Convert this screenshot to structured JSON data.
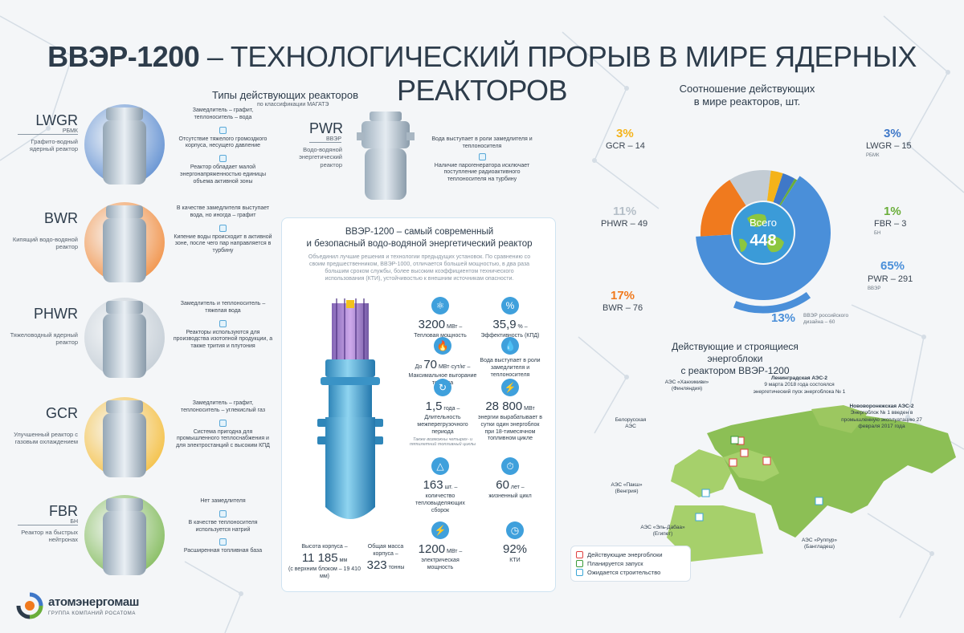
{
  "title": {
    "bold": "ВВЭР-1200",
    "rest": " – ТЕХНОЛОГИЧЕСКИЙ ПРОРЫВ В МИРЕ ЯДЕРНЫХ РЕАКТОРОВ"
  },
  "types": {
    "title": "Типы действующих реакторов",
    "subtitle": "по классификации МАГАТЭ"
  },
  "reactors": [
    {
      "code": "LWGR",
      "abbr": "РБМК",
      "desc": "Графито-водный ядерный реактор",
      "color": "#3f78c8",
      "facts": [
        "Замедлитель – графит, теплоноситель – вода",
        "Отсутствие тяжелого громоздкого корпуса, несущего давление",
        "Реактор обладает малой энергонапряженностью единицы объема активной зоны"
      ]
    },
    {
      "code": "BWR",
      "abbr": "",
      "desc": "Кипящий водо-водяной реактор",
      "color": "#f07a1e",
      "facts": [
        "В качестве замедлителя выступает вода, но иногда – графит",
        "Кипение воды происходит в активной зоне, после чего пар направляется в турбину"
      ]
    },
    {
      "code": "PHWR",
      "abbr": "",
      "desc": "Тяжеловодный ядерный реактор",
      "color": "#b8c3cd",
      "facts": [
        "Замедлитель и теплоноситель – тяжелая вода",
        "Реакторы используются для производства изотопной продукции, а также трития и плутония"
      ]
    },
    {
      "code": "GCR",
      "abbr": "",
      "desc": "Улучшенный реактор с газовым охлаждением",
      "color": "#f4b31a",
      "facts": [
        "Замедлитель – графит, теплоноситель – углекислый газ",
        "Система пригодна для промышленного теплоснабжения и для электростанций с высоким КПД"
      ]
    },
    {
      "code": "FBR",
      "abbr": "БН",
      "desc": "Реактор на быстрых нейтронах",
      "color": "#6aae3a",
      "facts": [
        "Нет замедлителя",
        "В качестве теплоносителя используется натрий",
        "Расширенная топливная база"
      ]
    }
  ],
  "pwr": {
    "code": "PWR",
    "abbr": "ВВЭР",
    "desc": "Водо-водяной энергетический реактор",
    "facts": [
      "Вода выступает в роли замедлителя и теплоносителя",
      "Наличие парогенератора исключает поступление радиоактивного теплоносителя на турбину"
    ]
  },
  "vver": {
    "heading1": "ВВЭР-1200 – самый современный",
    "heading2": "и безопасный водо-водяной энергетический реактор",
    "text": "Объединил лучшие решения и технологии предыдущих установок. По сравнению со своим предшественником, ВВЭР-1000, отличается большей мощностью, в два раза большим сроком службы, более высоким коэффициентом технического использования (КТИ), устойчивостью к внешним источникам опасности.",
    "stats": [
      {
        "pre": "",
        "big": "3200",
        "unit": " МВт –",
        "label": "Тепловая мощность",
        "icon": "⚛"
      },
      {
        "pre": "",
        "big": "35,9",
        "unit": " % –",
        "label": "Эффективность (КПД)",
        "icon": "%"
      },
      {
        "pre": "До ",
        "big": "70",
        "unit": " МВт·сут/кг –",
        "label": "Максимальное выгорание топлива",
        "icon": "🔥"
      },
      {
        "pre": "",
        "big": "",
        "unit": "",
        "label": "Вода выступает в роли замедлителя и теплоносителя",
        "icon": "💧"
      },
      {
        "pre": "",
        "big": "1,5",
        "unit": " года –",
        "label": "Длительность межперегрузочного периода",
        "note": "Также возможны четырех- и пятилетний топливный циклы",
        "icon": "↻"
      },
      {
        "pre": "",
        "big": "28 800",
        "unit": " МВт",
        "label": "энергии вырабатывает в сутки один энергоблок при 18-тимесячном топливном цикле",
        "icon": "⚡"
      },
      {
        "pre": "",
        "big": "163",
        "unit": " шт. –",
        "label": "количество тепловыделяющих сборок",
        "icon": "△"
      },
      {
        "pre": "",
        "big": "60",
        "unit": " лет –",
        "label": "жизненный цикл",
        "icon": "⏱"
      },
      {
        "pre": "",
        "big": "1200",
        "unit": " МВт –",
        "label": "электрическая мощность",
        "icon": "⚡"
      },
      {
        "pre": "",
        "big": "92%",
        "unit": "",
        "label": "КТИ",
        "icon": "◷"
      }
    ],
    "height": {
      "label": "Высота корпуса –",
      "big": "11 185",
      "unit": " мм",
      "note": "(с верхним блоком – 19 410 мм)"
    },
    "mass": {
      "label": "Общая масса корпуса –",
      "big": "323",
      "unit": " тонны"
    }
  },
  "ratio": {
    "title1": "Соотношение действующих",
    "title2": "в мире реакторов, шт.",
    "center_label": "Всего",
    "total": "448",
    "chart_data": {
      "type": "pie",
      "categories": [
        "PWR",
        "BWR",
        "PHWR",
        "GCR",
        "LWGR",
        "FBR"
      ],
      "values": [
        291,
        76,
        49,
        14,
        15,
        3
      ],
      "percents": [
        "65%",
        "17%",
        "11%",
        "3%",
        "3%",
        "1%"
      ],
      "colors": [
        "#4a8fd9",
        "#f07a1e",
        "#c3ccd4",
        "#f4b31a",
        "#3f78c8",
        "#6aae3a"
      ],
      "russian_design": {
        "percent": "13%",
        "label": "ВВЭР российского дизайна – 60"
      }
    },
    "labels": {
      "gcr": {
        "pct": "3%",
        "txt": "GCR – 14"
      },
      "lwgr": {
        "pct": "3%",
        "txt": "LWGR – 15",
        "sub": "РБМК"
      },
      "phwr": {
        "pct": "11%",
        "txt": "PHWR – 49"
      },
      "fbr": {
        "pct": "1%",
        "txt": "FBR – 3",
        "sub": "БН"
      },
      "pwr": {
        "pct": "65%",
        "txt": "PWR – 291",
        "sub": "ВВЭР"
      },
      "bwr": {
        "pct": "17%",
        "txt": "BWR – 76"
      }
    }
  },
  "map": {
    "title1": "Действующие и строящиеся энергоблоки",
    "title2": "с реактором ВВЭР-1200",
    "labels": [
      {
        "name": "АЭС «Ханхикиви»",
        "sub": "(Финляндия)"
      },
      {
        "name": "Ленинградская АЭС-2",
        "sub": "9 марта 2018 года состоялся энергетический пуск энергоблока № 1"
      },
      {
        "name": "Нововоронежская АЭС-2",
        "sub": "Энергоблок № 1 введен в промышленную эксплуатацию 27 февраля 2017 года"
      },
      {
        "name": "Белорусская АЭС",
        "sub": ""
      },
      {
        "name": "АЭС «Пакш»",
        "sub": "(Венгрия)"
      },
      {
        "name": "АЭС «Эль-Дабаа»",
        "sub": "(Египет)"
      },
      {
        "name": "АЭС «Руппур»",
        "sub": "(Бангладеш)"
      }
    ],
    "legend": [
      "Действующие энергоблоки",
      "Планируется запуск",
      "Ожидается строительство"
    ]
  },
  "logo": {
    "name": "атомэнергомаш",
    "sub": "ГРУППА КОМПАНИЙ РОСАТОМА"
  }
}
